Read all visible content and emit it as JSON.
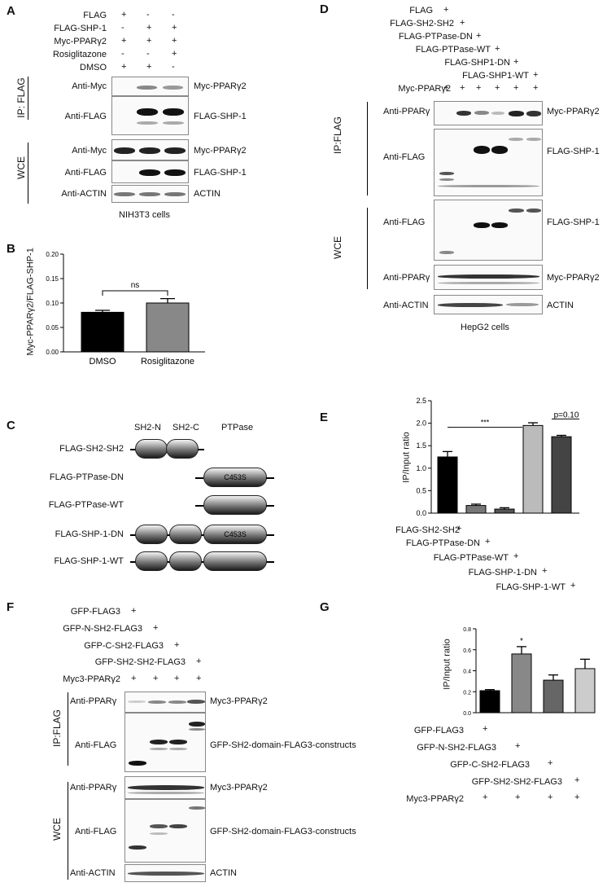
{
  "panelA": {
    "letter": "A",
    "conds": [
      "FLAG",
      "FLAG-SHP-1",
      "Myc-PPARγ2",
      "Rosiglitazone",
      "DMSO"
    ],
    "signs": [
      [
        "+",
        "-",
        "-"
      ],
      [
        "-",
        "+",
        "+"
      ],
      [
        "+",
        "+",
        "+"
      ],
      [
        "-",
        "-",
        "+"
      ],
      [
        "+",
        "+",
        "-"
      ]
    ],
    "ip": "IP: FLAG",
    "wce": "WCE",
    "blots": [
      {
        "ab": "Anti-Myc",
        "prot": "Myc-PPARγ2"
      },
      {
        "ab": "Anti-FLAG",
        "prot": "FLAG-SHP-1"
      },
      {
        "ab": "Anti-Myc",
        "prot": "Myc-PPARγ2"
      },
      {
        "ab": "Anti-FLAG",
        "prot": "FLAG-SHP-1"
      },
      {
        "ab": "Anti-ACTIN",
        "prot": "ACTIN"
      }
    ],
    "cells": "NIH3T3 cells"
  },
  "panelB": {
    "letter": "B",
    "ylabel": "Myc-PPARγ2/FLAG-SHP-1",
    "sig": "ns"
  },
  "chartB": {
    "type": "bar",
    "categories": [
      "DMSO",
      "Rosiglitazone"
    ],
    "values": [
      0.081,
      0.1
    ],
    "errors": [
      0.004,
      0.009
    ],
    "ylim": [
      0,
      0.2
    ],
    "yticks": [
      "0.00",
      "0.05",
      "0.10",
      "0.15",
      "0.20"
    ],
    "colors": [
      "#000000",
      "#888888"
    ]
  },
  "panelC": {
    "letter": "C",
    "headers": [
      "SH2-N",
      "SH2-C",
      "PTPase"
    ],
    "rows": [
      "FLAG-SH2-SH2",
      "FLAG-PTPase-DN",
      "FLAG-PTPase-WT",
      "FLAG-SHP-1-DN",
      "FLAG-SHP-1-WT"
    ],
    "mut": "C453S"
  },
  "panelD": {
    "letter": "D",
    "conds": [
      "FLAG",
      "FLAG-SH2-SH2",
      "FLAG-PTPase-DN",
      "FLAG-PTPase-WT",
      "FLAG-SHP1-DN",
      "FLAG-SHP1-WT",
      "Myc-PPARγ2"
    ],
    "plus": "+",
    "ip": "IP:FLAG",
    "wce": "WCE",
    "blots": [
      {
        "ab": "Anti-PPARγ",
        "prot": "Myc-PPARγ2"
      },
      {
        "ab": "Anti-FLAG",
        "prot": "FLAG-SHP-1"
      },
      {
        "ab": "Anti-FLAG",
        "prot": "FLAG-SHP-1"
      },
      {
        "ab": "Anti-PPARγ",
        "prot": "Myc-PPARγ2"
      },
      {
        "ab": "Anti-ACTIN",
        "prot": "ACTIN"
      }
    ],
    "cells": "HepG2 cells"
  },
  "panelE": {
    "letter": "E",
    "ylabel": "IP/Input ratio",
    "sig1": "***",
    "sig2": "p=0.10",
    "conds": [
      "FLAG-SH2-SH2",
      "FLAG-PTPase-DN",
      "FLAG-PTPase-WT",
      "FLAG-SHP-1-DN",
      "FLAG-SHP-1-WT"
    ],
    "plus": "+"
  },
  "chartE": {
    "type": "bar",
    "values": [
      1.25,
      0.17,
      0.09,
      1.95,
      1.7
    ],
    "errors": [
      0.12,
      0.03,
      0.03,
      0.06,
      0.03
    ],
    "ylim": [
      0,
      2.5
    ],
    "yticks": [
      "0.0",
      "0.5",
      "1.0",
      "1.5",
      "2.0",
      "2.5"
    ],
    "colors": [
      "#000000",
      "#777777",
      "#555555",
      "#bbbbbb",
      "#444444"
    ]
  },
  "panelF": {
    "letter": "F",
    "conds": [
      "GFP-FLAG3",
      "GFP-N-SH2-FLAG3",
      "GFP-C-SH2-FLAG3",
      "GFP-SH2-SH2-FLAG3",
      "Myc3-PPARγ2"
    ],
    "plus": "+",
    "ip": "IP:FLAG",
    "wce": "WCE",
    "blots": [
      {
        "ab": "Anti-PPARγ",
        "prot": "Myc3-PPARγ2"
      },
      {
        "ab": "Anti-FLAG",
        "prot": "GFP-SH2-domain-FLAG3-constructs"
      },
      {
        "ab": "Anti-PPARγ",
        "prot": "Myc3-PPARγ2"
      },
      {
        "ab": "Anti-FLAG",
        "prot": "GFP-SH2-domain-FLAG3-constructs"
      },
      {
        "ab": "Anti-ACTIN",
        "prot": "ACTIN"
      }
    ]
  },
  "panelG": {
    "letter": "G",
    "ylabel": "IP/Input ratio",
    "sig": "*",
    "conds": [
      "GFP-FLAG3",
      "GFP-N-SH2-FLAG3",
      "GFP-C-SH2-FLAG3",
      "GFP-SH2-SH2-FLAG3",
      "Myc3-PPARγ2"
    ],
    "plus": "+"
  },
  "chartG": {
    "type": "bar",
    "values": [
      0.21,
      0.56,
      0.31,
      0.42
    ],
    "errors": [
      0.01,
      0.07,
      0.05,
      0.09
    ],
    "ylim": [
      0,
      0.8
    ],
    "yticks": [
      "0.0",
      "0.2",
      "0.4",
      "0.6",
      "0.8"
    ],
    "colors": [
      "#000000",
      "#888888",
      "#666666",
      "#cccccc"
    ]
  }
}
